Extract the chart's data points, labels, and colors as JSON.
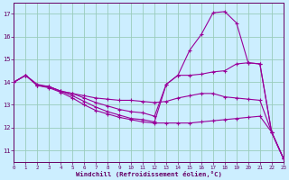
{
  "xlabel": "Windchill (Refroidissement éolien,°C)",
  "bg_color": "#cceeff",
  "grid_color": "#99ccbb",
  "line_color": "#990099",
  "xlim": [
    0,
    23
  ],
  "ylim": [
    10.5,
    17.5
  ],
  "yticks": [
    11,
    12,
    13,
    14,
    15,
    16,
    17
  ],
  "xticks": [
    0,
    1,
    2,
    3,
    4,
    5,
    6,
    7,
    8,
    9,
    10,
    11,
    12,
    13,
    14,
    15,
    16,
    17,
    18,
    19,
    20,
    21,
    22,
    23
  ],
  "series": [
    {
      "x": [
        0,
        1,
        2,
        3,
        4,
        5,
        6,
        7,
        8,
        9,
        10,
        11,
        12,
        13,
        14,
        15,
        16,
        17,
        18,
        19,
        20,
        21,
        22,
        23
      ],
      "y": [
        14.0,
        14.3,
        13.85,
        13.8,
        13.6,
        13.4,
        13.15,
        12.9,
        12.7,
        12.55,
        12.4,
        12.35,
        12.25,
        13.9,
        14.3,
        15.4,
        16.1,
        17.05,
        17.1,
        16.6,
        14.85,
        14.8,
        11.8,
        10.65
      ]
    },
    {
      "x": [
        0,
        1,
        2,
        3,
        4,
        5,
        6,
        7,
        8,
        9,
        10,
        11,
        12,
        13,
        14,
        15,
        16,
        17,
        18,
        19,
        20,
        21,
        22,
        23
      ],
      "y": [
        14.0,
        14.3,
        13.85,
        13.8,
        13.6,
        13.5,
        13.3,
        13.1,
        12.95,
        12.8,
        12.7,
        12.65,
        12.5,
        13.9,
        14.3,
        14.3,
        14.35,
        14.45,
        14.5,
        14.8,
        14.85,
        14.8,
        11.8,
        10.65
      ]
    },
    {
      "x": [
        0,
        1,
        2,
        3,
        4,
        5,
        6,
        7,
        8,
        9,
        10,
        11,
        12,
        13,
        14,
        15,
        16,
        17,
        18,
        19,
        20,
        21,
        22,
        23
      ],
      "y": [
        14.0,
        14.3,
        13.9,
        13.8,
        13.6,
        13.5,
        13.4,
        13.3,
        13.25,
        13.2,
        13.2,
        13.15,
        13.1,
        13.15,
        13.3,
        13.4,
        13.5,
        13.5,
        13.35,
        13.3,
        13.25,
        13.2,
        11.8,
        10.65
      ]
    },
    {
      "x": [
        0,
        1,
        2,
        3,
        4,
        5,
        6,
        7,
        8,
        9,
        10,
        11,
        12,
        13,
        14,
        15,
        16,
        17,
        18,
        19,
        20,
        21,
        22,
        23
      ],
      "y": [
        14.0,
        14.3,
        13.85,
        13.75,
        13.55,
        13.3,
        13.0,
        12.75,
        12.6,
        12.45,
        12.35,
        12.25,
        12.2,
        12.2,
        12.2,
        12.2,
        12.25,
        12.3,
        12.35,
        12.4,
        12.45,
        12.5,
        11.8,
        10.65
      ]
    }
  ]
}
